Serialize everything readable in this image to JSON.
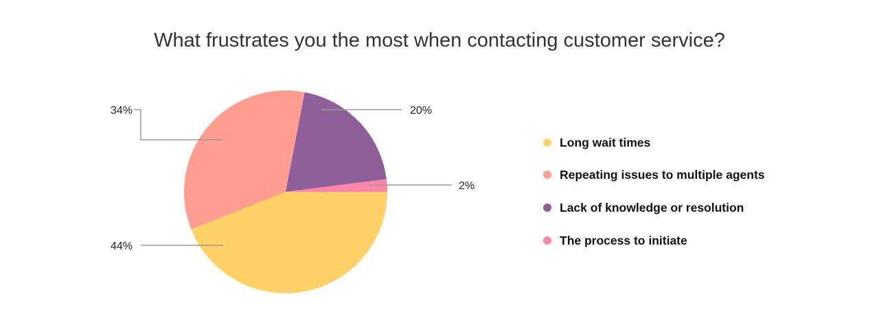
{
  "chart_data": {
    "type": "pie",
    "title": "What frustrates you the most when contacting customer service?",
    "categories": [
      "Long wait times",
      "Repeating issues to multiple agents",
      "Lack of knowledge or resolution",
      "The process to initiate"
    ],
    "values": [
      44,
      34,
      20,
      2
    ],
    "labels": [
      "44%",
      "34%",
      "20%",
      "2%"
    ],
    "colors": [
      "#FFD166",
      "#FF9E90",
      "#8F5F99",
      "#FF85AB"
    ],
    "start": "3 o'clock, clockwise",
    "legend_position": "right"
  }
}
